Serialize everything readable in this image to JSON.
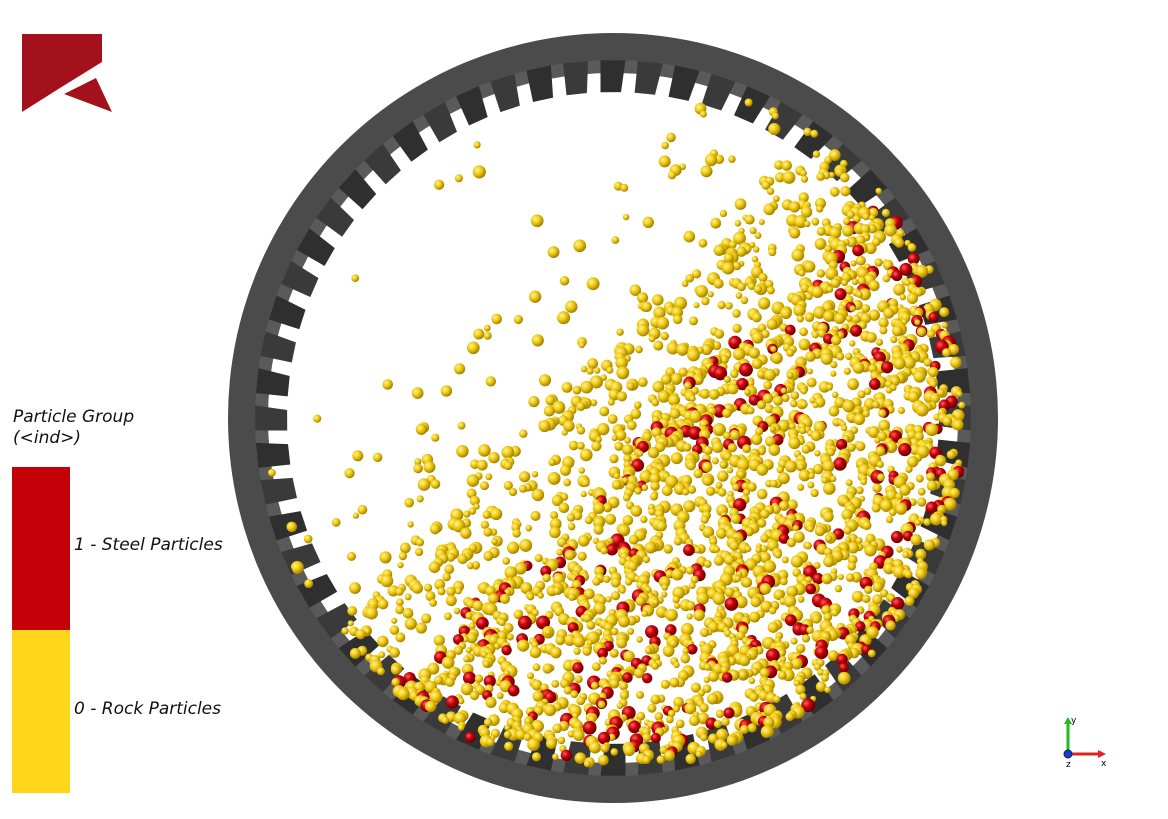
{
  "legend": {
    "title_line1": "Particle Group",
    "title_line2": "(<ind>)",
    "items": [
      {
        "label": "1 - Steel Particles",
        "color": "#c40008"
      },
      {
        "label": "0 - Rock Particles",
        "color": "#ffd61a"
      }
    ]
  },
  "axes_triad": {
    "x_label": "x",
    "y_label": "y",
    "z_label": "z"
  },
  "colors": {
    "drum_shell": "#4b4b4b",
    "lifter": "#3a3a3a",
    "steel": "#c40008",
    "rock": "#f2cc10",
    "logo": "#a3121c"
  }
}
